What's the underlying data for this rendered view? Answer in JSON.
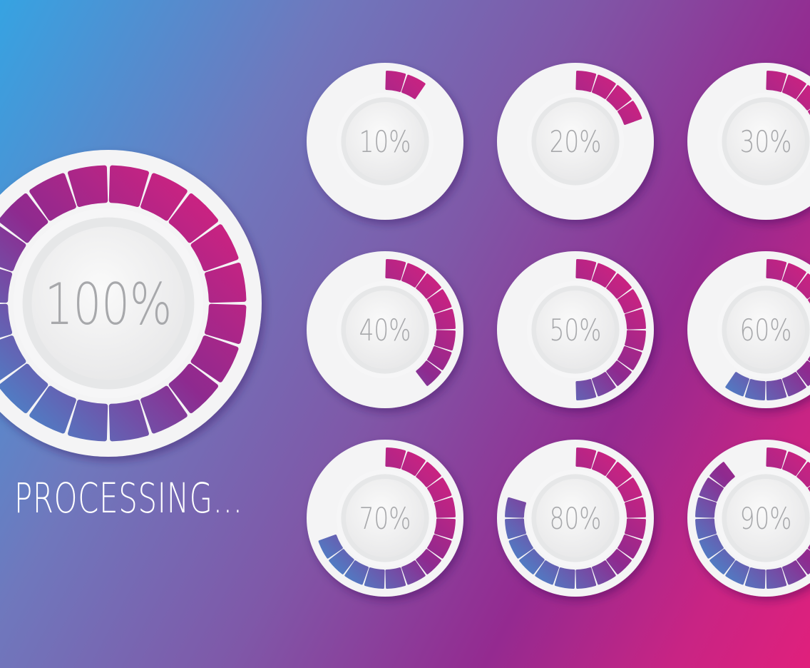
{
  "status_label": "PROCESSING...",
  "segments_per_ring": 20,
  "colors": {
    "pink": "#ec1e79",
    "purple": "#8e2a8f",
    "cyan": "#2eaae1",
    "face": "#f1f1f2",
    "text": "#a7a8ab"
  },
  "main_indicator": {
    "label": "100%",
    "progress": 100
  },
  "indicators": [
    {
      "label": "10%",
      "progress": 10
    },
    {
      "label": "20%",
      "progress": 20
    },
    {
      "label": "30%",
      "progress": 30
    },
    {
      "label": "40%",
      "progress": 40
    },
    {
      "label": "50%",
      "progress": 50
    },
    {
      "label": "60%",
      "progress": 60
    },
    {
      "label": "70%",
      "progress": 70
    },
    {
      "label": "80%",
      "progress": 80
    },
    {
      "label": "90%",
      "progress": 90
    }
  ]
}
